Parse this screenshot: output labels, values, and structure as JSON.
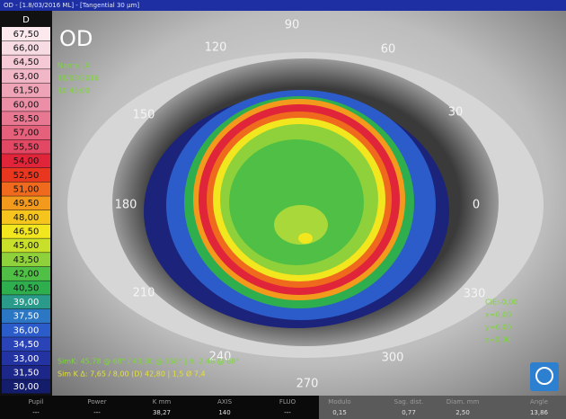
{
  "header": {
    "title": "OD - [1.8/03/2016 ML] - [Tangential 30 µm]"
  },
  "scale": {
    "unit": "D",
    "levels": [
      {
        "label": "67,50",
        "color": "#fbe9ee"
      },
      {
        "label": "66,00",
        "color": "#f8dce4"
      },
      {
        "label": "64,50",
        "color": "#f5cad6"
      },
      {
        "label": "63,00",
        "color": "#f2b7c7"
      },
      {
        "label": "61,50",
        "color": "#efa3b6"
      },
      {
        "label": "60,00",
        "color": "#ec8ea5"
      },
      {
        "label": "58,50",
        "color": "#e87891"
      },
      {
        "label": "57,00",
        "color": "#e5607b"
      },
      {
        "label": "55,50",
        "color": "#e24763"
      },
      {
        "label": "54,00",
        "color": "#e0243a"
      },
      {
        "label": "52,50",
        "color": "#e8361f"
      },
      {
        "label": "51,00",
        "color": "#ef6a1c"
      },
      {
        "label": "49,50",
        "color": "#f39a1c"
      },
      {
        "label": "48,00",
        "color": "#f6c51d"
      },
      {
        "label": "46,50",
        "color": "#f2e61f"
      },
      {
        "label": "45,00",
        "color": "#c9e02a"
      },
      {
        "label": "43,50",
        "color": "#8fd13a"
      },
      {
        "label": "42,00",
        "color": "#4fbf45"
      },
      {
        "label": "40,50",
        "color": "#2fae4e"
      },
      {
        "label": "39,00",
        "color": "#2a9a8a"
      },
      {
        "label": "37,50",
        "color": "#2b77c4"
      },
      {
        "label": "36,00",
        "color": "#2c5cc9"
      },
      {
        "label": "34,50",
        "color": "#2a44b8"
      },
      {
        "label": "33,00",
        "color": "#2333a2"
      },
      {
        "label": "31,50",
        "color": "#1c2789"
      },
      {
        "label": "30,00",
        "color": "#141c6c"
      }
    ]
  },
  "image": {
    "eye_label": "OD",
    "patient_info": [
      "Name LX",
      "18/03/2016",
      "10:45:00"
    ],
    "axis_labels": [
      "90",
      "60",
      "30",
      "0",
      "330",
      "300",
      "270",
      "240",
      "210",
      "180",
      "150",
      "120"
    ],
    "readout": [
      "CIE:-0,00",
      "x=0,00",
      "y=0,00",
      "z=0,00"
    ],
    "footer_lines": [
      "SimK: 45,78 @ 68° / 43,30 @ 158° | Δ: 2,48 @ 68°",
      "Sim K Δ: 7,65 / 8,00 (D) 42,80 | 1,5 Ø 7,4"
    ]
  },
  "status_bar": {
    "fields": [
      {
        "label": "Pupil",
        "value": "---"
      },
      {
        "label": "Power",
        "value": "---"
      },
      {
        "label": "K mm",
        "value": "38,27"
      },
      {
        "label": "AXIS",
        "value": "140"
      },
      {
        "label": "FLUO",
        "value": "---"
      },
      {
        "label": "Modulo",
        "value": "0,15"
      },
      {
        "label": "Sag. dist.",
        "value": "0,77"
      },
      {
        "label": "Diam. mm",
        "value": "2,50"
      },
      {
        "label": "Angle",
        "value": "13,86"
      }
    ]
  }
}
